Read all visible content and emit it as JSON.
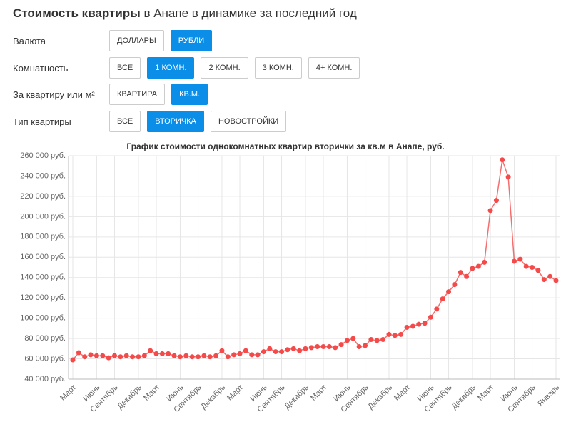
{
  "header": {
    "title_bold": "Стоимость квартиры",
    "title_rest": "в Анапе в динамике за последний год"
  },
  "filters": [
    {
      "label": "Валюта",
      "options": [
        "ДОЛЛАРЫ",
        "РУБЛИ"
      ],
      "active": 1
    },
    {
      "label": "Комнатность",
      "options": [
        "ВСЕ",
        "1 КОМН.",
        "2 КОМН.",
        "3 КОМН.",
        "4+ КОМН."
      ],
      "active": 1
    },
    {
      "label": "За квартиру или м²",
      "options": [
        "КВАРТИРА",
        "КВ.М."
      ],
      "active": 1
    },
    {
      "label": "Тип квартиры",
      "options": [
        "ВСЕ",
        "ВТОРИЧКА",
        "НОВОСТРОЙКИ"
      ],
      "active": 1
    }
  ],
  "chart_data": {
    "type": "line",
    "title": "График стоимости однокомнатных квартир вторички за кв.м в Анапе, руб.",
    "categories": [
      "Март",
      null,
      null,
      null,
      "Июнь",
      null,
      null,
      "Сентябрь",
      null,
      null,
      null,
      "Декабрь",
      null,
      null,
      "Март",
      null,
      null,
      null,
      "Июнь",
      null,
      null,
      "Сентябрь",
      null,
      null,
      null,
      "Декабрь",
      null,
      null,
      "Март",
      null,
      null,
      null,
      "Июнь",
      null,
      null,
      "Сентябрь",
      null,
      null,
      null,
      "Декабрь",
      null,
      null,
      "Март",
      null,
      null,
      null,
      "Июнь",
      null,
      null,
      "Сентябрь",
      null,
      null,
      null,
      "Декабрь",
      null,
      null,
      "Март",
      null,
      null,
      null,
      "Июнь",
      null,
      null,
      "Сентябрь",
      null,
      null,
      null,
      "Декабрь",
      null,
      null,
      "Март",
      null,
      null,
      null,
      "Июнь",
      null,
      null,
      "Сентябрь",
      null,
      null,
      null,
      "Январь"
    ],
    "values": [
      59000,
      66000,
      62000,
      64000,
      63000,
      63000,
      61000,
      63000,
      62000,
      63000,
      62000,
      62000,
      63000,
      68000,
      65000,
      65000,
      65000,
      63000,
      62000,
      63000,
      62000,
      62000,
      63000,
      62000,
      63000,
      68000,
      62000,
      64000,
      65000,
      68000,
      64000,
      64000,
      67000,
      70000,
      67000,
      67000,
      69000,
      70000,
      68000,
      70000,
      71000,
      72000,
      72000,
      72000,
      71000,
      74000,
      78000,
      80000,
      72000,
      73000,
      79000,
      78000,
      79000,
      84000,
      83000,
      84000,
      91000,
      92000,
      94000,
      95000,
      101000,
      109000,
      119000,
      126000,
      133000,
      145000,
      141000,
      149000,
      151000,
      155000,
      206000,
      216000,
      256000,
      239000,
      156000,
      158000,
      151000,
      150000,
      147000,
      138000,
      141000,
      137000
    ],
    "color": "#f44a4a",
    "ylim": [
      40000,
      260000
    ],
    "yticks": [
      {
        "value": 40000,
        "label": "40 000 руб."
      },
      {
        "value": 60000,
        "label": "60 000 руб."
      },
      {
        "value": 80000,
        "label": "80 000 руб."
      },
      {
        "value": 100000,
        "label": "100 000 руб."
      },
      {
        "value": 120000,
        "label": "120 000 руб."
      },
      {
        "value": 140000,
        "label": "140 000 руб."
      },
      {
        "value": 160000,
        "label": "160 000 руб."
      },
      {
        "value": 180000,
        "label": "180 000 руб."
      },
      {
        "value": 200000,
        "label": "200 000 руб."
      },
      {
        "value": 220000,
        "label": "220 000 руб."
      },
      {
        "value": 240000,
        "label": "240 000 руб."
      },
      {
        "value": 260000,
        "label": "260 000 руб."
      }
    ],
    "grid": true
  }
}
